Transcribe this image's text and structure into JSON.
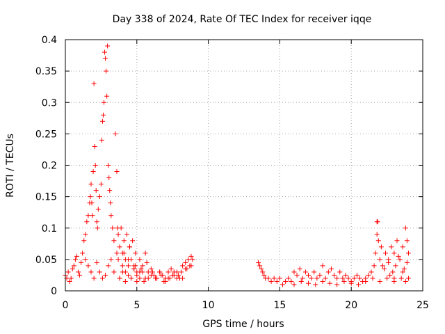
{
  "chart_data": {
    "type": "scatter",
    "title": "Day 338 of 2024, Rate Of TEC Index for receiver iqqe",
    "xlabel": "GPS time / hours",
    "ylabel": "ROTI / TECUs",
    "xlim": [
      0,
      25
    ],
    "ylim": [
      0,
      0.4
    ],
    "xticks": [
      0,
      5,
      10,
      15,
      20,
      25
    ],
    "xtick_labels": [
      "0",
      "5",
      "10",
      "15",
      "20",
      "25"
    ],
    "yticks": [
      0,
      0.05,
      0.1,
      0.15,
      0.2,
      0.25,
      0.3,
      0.35,
      0.4
    ],
    "ytick_labels": [
      "0",
      "0.05",
      "0.1",
      "0.15",
      "0.2",
      "0.25",
      "0.3",
      "0.35",
      "0.4"
    ],
    "grid": true,
    "marker": "plus",
    "marker_color": "#ff0000",
    "series": [
      {
        "x": [
          0.0,
          0.1,
          0.2,
          0.3,
          0.4,
          0.5,
          0.6,
          0.7,
          0.8,
          0.9,
          1.0,
          1.1,
          1.2,
          1.3,
          1.4,
          1.5,
          1.6,
          1.7,
          1.75,
          1.8,
          1.85,
          1.9,
          1.95,
          2.0,
          2.05,
          2.1,
          2.15,
          2.2,
          2.25,
          2.3,
          2.4,
          2.5,
          2.55,
          2.6,
          2.65,
          2.7,
          2.75,
          2.8,
          2.85,
          2.9,
          2.95,
          3.0,
          3.05,
          3.1,
          3.15,
          3.2,
          3.3,
          3.4,
          3.5,
          3.6,
          3.65,
          3.7,
          3.8,
          3.9,
          4.0,
          4.1,
          4.2,
          4.3,
          4.4,
          4.5,
          4.6,
          4.7,
          4.8,
          4.9,
          5.0,
          5.2,
          5.4,
          5.6,
          5.8,
          6.0,
          6.2,
          6.4,
          6.6,
          6.8,
          7.0,
          7.2,
          7.4,
          7.6,
          7.8,
          8.0,
          8.2,
          8.4,
          8.6,
          8.8,
          8.9,
          1.4,
          1.6,
          1.8,
          2.0,
          2.2,
          2.4,
          2.6,
          2.8,
          3.0,
          3.2,
          3.4,
          3.6,
          3.8,
          4.0,
          4.2,
          4.4,
          4.6,
          4.8,
          5.0,
          5.2,
          5.5,
          5.8,
          6.1,
          6.4,
          6.7,
          7.0,
          7.3,
          7.6,
          7.9,
          8.2,
          8.5,
          8.8,
          3.8,
          4.0,
          4.2,
          4.4,
          4.6,
          4.8,
          5.0,
          5.2,
          5.4,
          5.6,
          3.7,
          4.1,
          4.5,
          4.9,
          5.3,
          5.7,
          6.0,
          6.3,
          6.6,
          6.9,
          7.2,
          7.5,
          7.8,
          8.1,
          8.4,
          8.7,
          13.5,
          13.6,
          13.7,
          13.8,
          13.9,
          14.0,
          14.2,
          14.4,
          14.6,
          14.8,
          15.0,
          15.2,
          15.4,
          15.6,
          15.8,
          16.0,
          16.2,
          16.4,
          16.6,
          16.8,
          17.0,
          17.2,
          17.4,
          17.6,
          17.8,
          18.0,
          18.2,
          18.4,
          18.6,
          18.8,
          19.0,
          19.2,
          19.4,
          19.6,
          19.8,
          20.0,
          20.2,
          20.4,
          20.6,
          20.8,
          21.0,
          21.2,
          21.4,
          21.6,
          21.7,
          21.8,
          21.9,
          22.0,
          22.2,
          22.4,
          22.6,
          22.8,
          23.0,
          23.2,
          23.4,
          23.6,
          23.8,
          23.9,
          24.0,
          16.0,
          16.5,
          17.0,
          17.5,
          18.0,
          18.5,
          19.0,
          19.5,
          20.0,
          20.5,
          21.0,
          21.5,
          22.0,
          22.5,
          23.0,
          23.5,
          23.8,
          22.3,
          22.6,
          22.9,
          23.1,
          23.3,
          23.6,
          23.9,
          21.8,
          21.85,
          22.1,
          22.7,
          23.0,
          23.7,
          24.0
        ],
        "y": [
          0.025,
          0.02,
          0.03,
          0.015,
          0.02,
          0.035,
          0.04,
          0.05,
          0.055,
          0.03,
          0.025,
          0.045,
          0.06,
          0.08,
          0.09,
          0.11,
          0.12,
          0.14,
          0.15,
          0.17,
          0.14,
          0.12,
          0.19,
          0.33,
          0.23,
          0.2,
          0.16,
          0.11,
          0.1,
          0.13,
          0.15,
          0.17,
          0.24,
          0.27,
          0.28,
          0.3,
          0.38,
          0.37,
          0.35,
          0.31,
          0.39,
          0.2,
          0.18,
          0.16,
          0.14,
          0.12,
          0.1,
          0.08,
          0.25,
          0.19,
          0.1,
          0.09,
          0.07,
          0.1,
          0.06,
          0.08,
          0.05,
          0.09,
          0.04,
          0.07,
          0.05,
          0.08,
          0.04,
          0.06,
          0.03,
          0.05,
          0.04,
          0.06,
          0.03,
          0.035,
          0.025,
          0.02,
          0.03,
          0.025,
          0.02,
          0.03,
          0.035,
          0.025,
          0.03,
          0.02,
          0.04,
          0.045,
          0.05,
          0.055,
          0.05,
          0.05,
          0.04,
          0.03,
          0.02,
          0.045,
          0.03,
          0.02,
          0.025,
          0.04,
          0.05,
          0.03,
          0.06,
          0.02,
          0.04,
          0.03,
          0.05,
          0.02,
          0.035,
          0.025,
          0.03,
          0.015,
          0.02,
          0.03,
          0.02,
          0.025,
          0.015,
          0.02,
          0.03,
          0.025,
          0.02,
          0.035,
          0.04,
          0.02,
          0.03,
          0.015,
          0.025,
          0.02,
          0.035,
          0.015,
          0.02,
          0.03,
          0.02,
          0.05,
          0.06,
          0.07,
          0.04,
          0.035,
          0.045,
          0.025,
          0.02,
          0.03,
          0.015,
          0.02,
          0.025,
          0.02,
          0.03,
          0.035,
          0.04,
          0.045,
          0.04,
          0.035,
          0.03,
          0.025,
          0.02,
          0.02,
          0.015,
          0.02,
          0.015,
          0.02,
          0.01,
          0.015,
          0.02,
          0.015,
          0.03,
          0.025,
          0.035,
          0.02,
          0.03,
          0.025,
          0.02,
          0.03,
          0.02,
          0.025,
          0.04,
          0.02,
          0.03,
          0.035,
          0.025,
          0.02,
          0.03,
          0.02,
          0.025,
          0.02,
          0.015,
          0.02,
          0.025,
          0.02,
          0.015,
          0.02,
          0.025,
          0.03,
          0.04,
          0.06,
          0.11,
          0.08,
          0.05,
          0.04,
          0.06,
          0.05,
          0.07,
          0.06,
          0.08,
          0.05,
          0.07,
          0.1,
          0.08,
          0.06,
          0.01,
          0.015,
          0.012,
          0.01,
          0.015,
          0.012,
          0.01,
          0.015,
          0.012,
          0.01,
          0.015,
          0.02,
          0.015,
          0.02,
          0.015,
          0.02,
          0.015,
          0.035,
          0.045,
          0.03,
          0.04,
          0.055,
          0.03,
          0.045,
          0.09,
          0.11,
          0.07,
          0.025,
          0.02,
          0.035,
          0.02
        ]
      }
    ]
  }
}
